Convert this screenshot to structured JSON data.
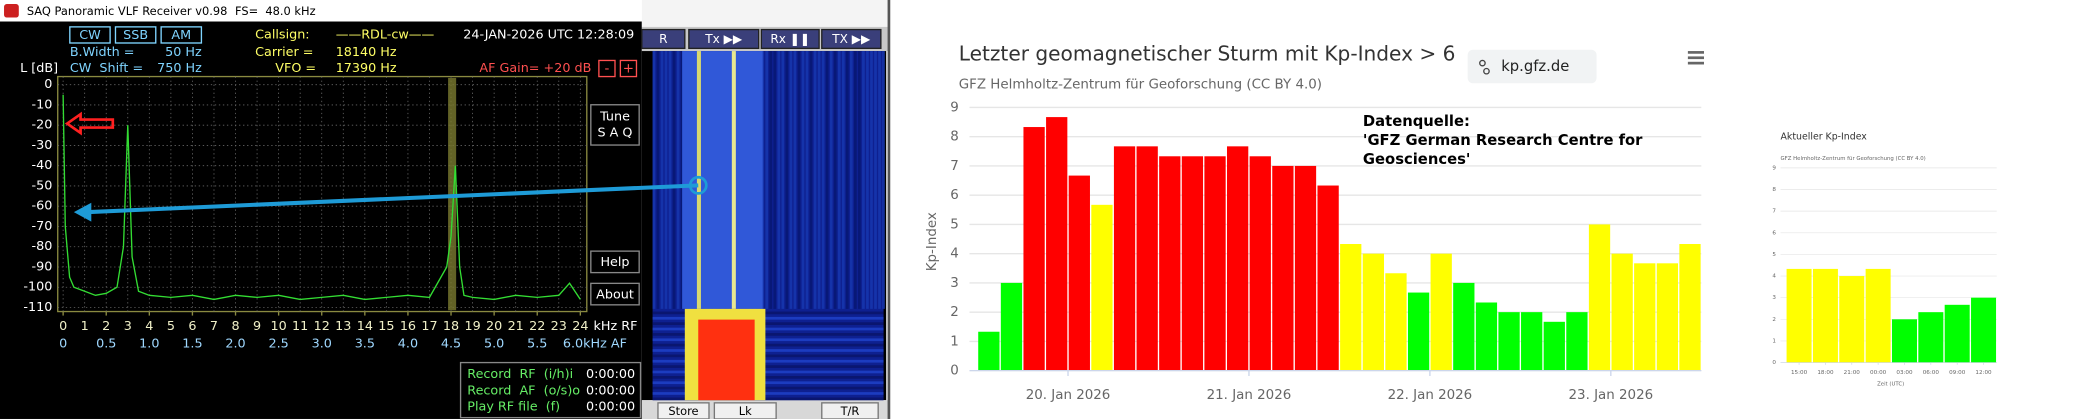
{
  "receiver_window": {
    "title": "SAQ Panoramic VLF Receiver v0.98",
    "sample_rate": "FS=  48.0 kHz",
    "modes": [
      "CW",
      "SSB",
      "AM"
    ],
    "bandwidth_label": "B.Width =",
    "bandwidth": "50 Hz",
    "shift_label": "CW  Shift =",
    "shift": "750 Hz",
    "callsign_label": "Callsign:",
    "callsign": "——RDL-cw——",
    "carrier_label": "Carrier =",
    "carrier": "18140 Hz",
    "vfo_label": "VFO =",
    "vfo": "17390 Hz",
    "datetime": "24-JAN-2026 UTC 12:28:09",
    "af_gain": "AF Gain= +20 dB",
    "gain_down": "-",
    "gain_up": "+",
    "tune_button": [
      "Tune",
      "S A Q"
    ],
    "help_button": "Help",
    "about_button": "About",
    "recorders": [
      {
        "label": "Record  RF  (i/h)i",
        "time": "0:00:00"
      },
      {
        "label": "Record  AF  (o/s)o",
        "time": "0:00:00"
      },
      {
        "label": "Play RF file  (f)",
        "time": "0:00:00"
      }
    ]
  },
  "waterfall_window": {
    "buttons": [
      "R",
      "Tx ▶▶",
      "Rx ❚❚",
      "TX ▶▶"
    ],
    "bottom_buttons": [
      "Store",
      "Lk",
      "T/R"
    ]
  },
  "chart_data": [
    {
      "type": "line",
      "y_axis_label": "L [dB]",
      "x_unit_label": "kHz RF",
      "x": [
        0,
        0.1,
        0.3,
        0.5,
        1,
        1.5,
        2,
        2.5,
        2.8,
        3.0,
        3.2,
        3.5,
        4,
        5,
        6,
        7,
        8,
        9,
        10,
        11,
        12,
        13,
        14,
        15,
        16,
        17,
        17.8,
        18.0,
        18.2,
        18.4,
        18.6,
        19,
        20,
        21,
        22,
        23,
        23.5,
        24
      ],
      "series": [
        {
          "color": "#33dd33",
          "values": [
            -5,
            -70,
            -95,
            -100,
            -102,
            -104,
            -103,
            -100,
            -80,
            -20,
            -85,
            -102,
            -104,
            -105,
            -104,
            -106,
            -104,
            -105,
            -104,
            -106,
            -105,
            -104,
            -106,
            -105,
            -104,
            -105,
            -90,
            -75,
            -40,
            -90,
            -104,
            -105,
            -106,
            -104,
            -105,
            -104,
            -98,
            -106
          ]
        }
      ],
      "xlim": [
        -0.25,
        24.3
      ],
      "xticks": [
        0,
        1,
        2,
        3,
        4,
        5,
        6,
        7,
        8,
        9,
        10,
        11,
        12,
        13,
        14,
        15,
        16,
        17,
        18,
        19,
        20,
        21,
        22,
        23,
        24
      ],
      "x2lim": [
        -0.0625,
        6.075
      ],
      "x2ticks": [
        0,
        0.5,
        {
          "value": 1,
          "label": "1.0"
        },
        1.5,
        {
          "value": 2,
          "label": "2.0"
        },
        2.5,
        {
          "value": 3,
          "label": "3.0"
        },
        3.5,
        {
          "value": 4,
          "label": "4.0"
        },
        4.5,
        {
          "value": 5,
          "label": "5.0"
        },
        5.5,
        {
          "value": 6,
          "label": "6.0kHz AF"
        }
      ],
      "ylim": [
        -112,
        4
      ],
      "yticks": [
        0,
        -10,
        -20,
        -30,
        -40,
        -50,
        -60,
        -70,
        -80,
        -90,
        -100,
        -110
      ],
      "grid": true
    },
    {
      "type": "bar",
      "title": "Letzter geomagnetischer Sturm mit Kp-Index > 6",
      "subtitle": "GFZ Helmholtz-Zentrum für Geoforschung (CC BY 4.0)",
      "y_axis_label": "Kp-Index",
      "source_link": "kp.gfz.de",
      "annotation": [
        "Datenquelle:",
        "'GFZ German Research Centre for",
        "Geosciences'"
      ],
      "categories": [
        null,
        null,
        null,
        null,
        "20. Jan 2026",
        null,
        null,
        null,
        null,
        null,
        null,
        null,
        "21. Jan 2026",
        null,
        null,
        null,
        null,
        null,
        null,
        null,
        "22. Jan 2026",
        null,
        null,
        null,
        null,
        null,
        null,
        null,
        "23. Jan 2026",
        null,
        null,
        null
      ],
      "values": [
        1.33,
        3.0,
        8.33,
        8.67,
        6.67,
        5.67,
        7.67,
        7.67,
        7.33,
        7.33,
        7.33,
        7.67,
        7.33,
        7.0,
        7.0,
        6.33,
        4.33,
        4.0,
        3.33,
        2.67,
        4.0,
        3.0,
        2.33,
        2.0,
        2.0,
        1.67,
        2.0,
        5.0,
        4.0,
        3.67,
        3.67,
        4.33
      ],
      "colors": [
        "#00ff00",
        "#00ff00",
        "#ff0000",
        "#ff0000",
        "#ff0000",
        "#ffff00",
        "#ff0000",
        "#ff0000",
        "#ff0000",
        "#ff0000",
        "#ff0000",
        "#ff0000",
        "#ff0000",
        "#ff0000",
        "#ff0000",
        "#ff0000",
        "#ffff00",
        "#ffff00",
        "#ffff00",
        "#00ff00",
        "#ffff00",
        "#00ff00",
        "#00ff00",
        "#00ff00",
        "#00ff00",
        "#00ff00",
        "#00ff00",
        "#ffff00",
        "#ffff00",
        "#ffff00",
        "#ffff00",
        "#ffff00"
      ],
      "ylim": [
        0,
        9
      ],
      "yticks": [
        0,
        1,
        2,
        3,
        4,
        5,
        6,
        7,
        8,
        9
      ],
      "grid": true
    },
    {
      "type": "bar",
      "title": "Aktueller Kp-Index",
      "subtitle": "GFZ Helmholtz-Zentrum für Geoforschung (CC BY 4.0)",
      "x_axis_label": "Zeit (UTC)",
      "categories": [
        "15:00",
        "18:00",
        "21:00",
        "00:00",
        "03:00",
        "06:00",
        "09:00",
        "12:00"
      ],
      "values": [
        4.33,
        4.33,
        4.0,
        4.33,
        2.0,
        2.33,
        2.67,
        3.0
      ],
      "colors": [
        "#ffff00",
        "#ffff00",
        "#ffff00",
        "#ffff00",
        "#00ff00",
        "#00ff00",
        "#00ff00",
        "#00ff00"
      ],
      "ylim": [
        0,
        9
      ],
      "yticks": [
        0,
        1,
        2,
        3,
        4,
        5,
        6,
        7,
        8,
        9
      ],
      "grid": true
    }
  ]
}
